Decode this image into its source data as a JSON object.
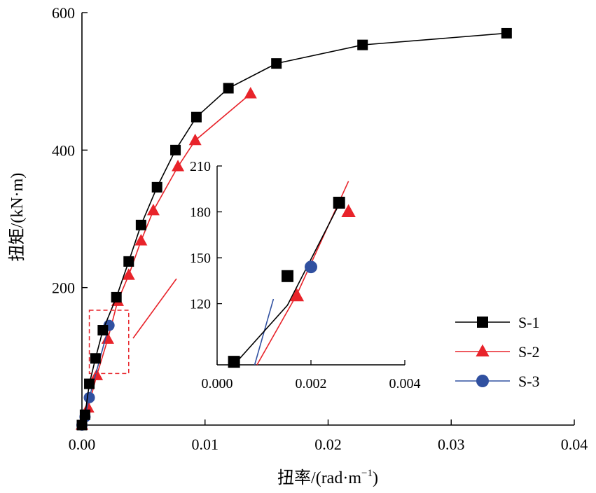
{
  "chart_data": {
    "type": "line",
    "xlabel": "扭率/(rad·m",
    "xlabel_sup": "−1",
    "xlabel_end": ")",
    "ylabel": "扭矩/(kN·m)",
    "xlim": [
      0,
      0.04
    ],
    "ylim": [
      0,
      600
    ],
    "xticks": [
      {
        "value": 0.0,
        "label": "0.00"
      },
      {
        "value": 0.01,
        "label": "0.01"
      },
      {
        "value": 0.02,
        "label": "0.02"
      },
      {
        "value": 0.03,
        "label": "0.03"
      },
      {
        "value": 0.04,
        "label": "0.04"
      }
    ],
    "yticks": [
      {
        "value": 200,
        "label": "200"
      },
      {
        "value": 400,
        "label": "400"
      },
      {
        "value": 600,
        "label": "600"
      }
    ],
    "grid": false,
    "legend_position": "right",
    "series": [
      {
        "name": "S-1",
        "color": "#000000",
        "marker": "square",
        "x": [
          0.0,
          0.00025,
          0.0006,
          0.0011,
          0.0017,
          0.0028,
          0.0038,
          0.0048,
          0.0061,
          0.0076,
          0.0093,
          0.0119,
          0.0158,
          0.0228,
          0.0345
        ],
        "y": [
          0,
          15,
          60,
          97,
          138,
          186,
          238,
          291,
          346,
          400,
          448,
          490,
          526,
          553,
          570
        ]
      },
      {
        "name": "S-2",
        "color": "#e8232a",
        "marker": "triangle",
        "x": [
          0.0,
          0.0005,
          0.0012,
          0.0021,
          0.0029,
          0.0038,
          0.0048,
          0.0058,
          0.0078,
          0.0092,
          0.0137
        ],
        "y": [
          0,
          25,
          72,
          125,
          180,
          218,
          268,
          312,
          376,
          414,
          482
        ]
      },
      {
        "name": "S-3",
        "color": "#3050a0",
        "marker": "circle",
        "x": [
          0.0,
          0.00025,
          0.0006,
          0.0022
        ],
        "y": [
          0,
          12,
          40,
          145
        ]
      }
    ],
    "inset": {
      "xlim": [
        0,
        0.004
      ],
      "ylim": [
        80,
        210
      ],
      "xticks": [
        {
          "value": 0.0,
          "label": "0.000"
        },
        {
          "value": 0.002,
          "label": "0.002"
        },
        {
          "value": 0.004,
          "label": "0.004"
        }
      ],
      "yticks": [
        {
          "value": 120,
          "label": "120"
        },
        {
          "value": 150,
          "label": "150"
        },
        {
          "value": 180,
          "label": "180"
        },
        {
          "value": 210,
          "label": "210"
        }
      ],
      "series": [
        {
          "name": "S-1",
          "x": [
            0.00036,
            0.0015,
            0.0026
          ],
          "y": [
            80,
            119,
            185
          ]
        },
        {
          "name": "S-2",
          "x": [
            0.00085,
            0.0017,
            0.0028
          ],
          "y": [
            80,
            126,
            200
          ]
        },
        {
          "name": "S-3",
          "x": [
            0.0008,
            0.0012
          ],
          "y": [
            80,
            123
          ]
        }
      ],
      "markers": [
        {
          "series": "S-1",
          "x": [
            0.00036,
            0.0015,
            0.0026
          ],
          "y": [
            82,
            138,
            186
          ]
        },
        {
          "series": "S-2",
          "x": [
            0.0017,
            0.0028
          ],
          "y": [
            125,
            180
          ]
        },
        {
          "series": "S-3",
          "x": [
            0.002
          ],
          "y": [
            144
          ]
        }
      ]
    },
    "zoom_region": {
      "xlim": [
        0.0006,
        0.0038
      ],
      "ylim": [
        75,
        167
      ]
    }
  }
}
